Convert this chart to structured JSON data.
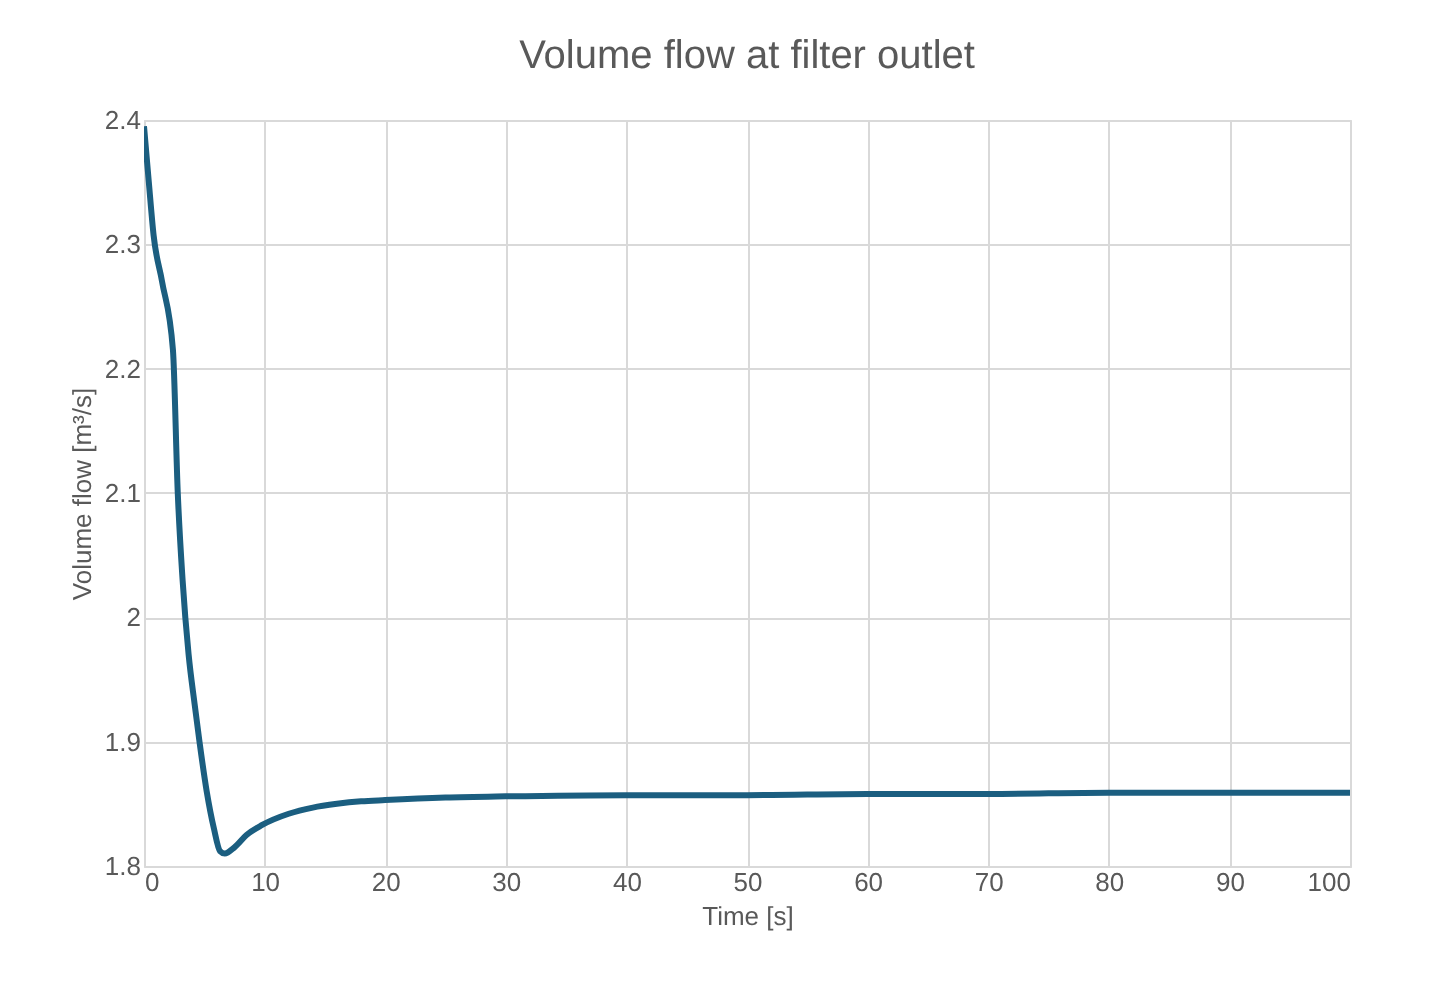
{
  "chart_data": {
    "type": "line",
    "title": "Volume flow at filter outlet",
    "xlabel": "Time [s]",
    "ylabel": "Volume flow [m³/s]",
    "x": [
      0,
      0.4,
      0.8,
      1.5,
      2.4,
      2.8,
      3.2,
      3.7,
      4.2,
      4.6,
      5.2,
      5.8,
      6.3,
      6.7,
      7.5,
      8.5,
      9.8,
      12,
      14,
      16,
      18,
      20,
      25,
      30,
      40,
      50,
      60,
      70,
      80,
      90,
      100
    ],
    "series": [
      {
        "color": "#1b5e80",
        "values": [
          2.395,
          2.35,
          2.307,
          2.27,
          2.215,
          2.1,
          2.03,
          1.97,
          1.93,
          1.9,
          1.86,
          1.83,
          1.812,
          1.81,
          1.815,
          1.825,
          1.833,
          1.842,
          1.847,
          1.85,
          1.852,
          1.853,
          1.855,
          1.856,
          1.857,
          1.857,
          1.858,
          1.858,
          1.859,
          1.859,
          1.859
        ]
      }
    ],
    "xlim": [
      0,
      100
    ],
    "xticks": [
      0,
      10,
      20,
      30,
      40,
      50,
      60,
      70,
      80,
      90,
      100
    ],
    "ylim": [
      1.8,
      2.4
    ],
    "yticks": [
      1.8,
      1.9,
      2,
      2.1,
      2.2,
      2.3,
      2.4
    ],
    "grid": true
  }
}
